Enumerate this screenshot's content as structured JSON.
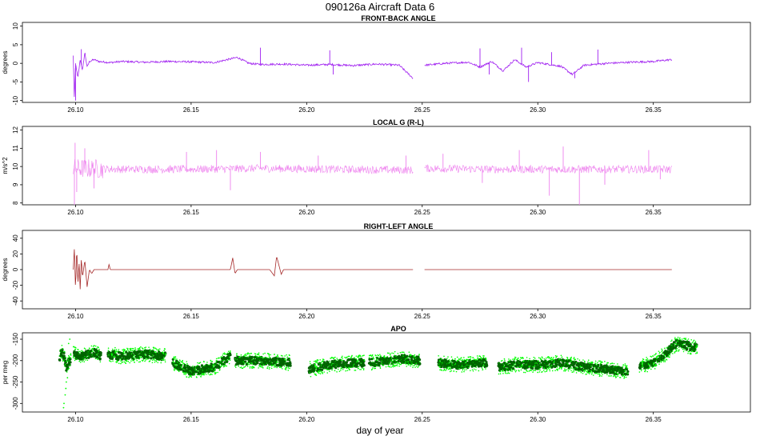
{
  "figure": {
    "title": "090126a   Aircraft Data 6",
    "xlabel": "day of year"
  },
  "chart_data": [
    {
      "type": "line",
      "title": "FRONT-BACK ANGLE",
      "ylabel": "degrees",
      "xlim": [
        26.077,
        26.392
      ],
      "ylim": [
        -10.5,
        11
      ],
      "xticks": [
        26.1,
        26.15,
        26.2,
        26.25,
        26.3,
        26.35
      ],
      "xtick_labels": [
        "26.10",
        "26.15",
        "26.20",
        "26.25",
        "26.30",
        "26.35"
      ],
      "yticks": [
        -10,
        -5,
        0,
        5,
        10
      ],
      "ytick_labels": [
        "-10",
        "-5",
        "0",
        "5",
        "10"
      ],
      "color": "#a020f0",
      "series": [
        {
          "x": [
            26.099,
            26.0995,
            26.1,
            26.101,
            26.102,
            26.103,
            26.104,
            26.105,
            26.106,
            26.108,
            26.11,
            26.115,
            26.12,
            26.13,
            26.14,
            26.15,
            26.16,
            26.17,
            26.175,
            26.18,
            26.19,
            26.2,
            26.21,
            26.22,
            26.23,
            26.24,
            26.246
          ],
          "y": [
            2,
            -10,
            0,
            -4,
            1,
            -2,
            3,
            -1,
            0.5,
            1,
            0.5,
            0.2,
            0.5,
            0.3,
            0.5,
            0.4,
            0.2,
            1.6,
            0,
            -0.3,
            -0.2,
            -0.5,
            -0.3,
            -0.6,
            -0.2,
            -0.5,
            -4
          ]
        },
        {
          "x": [
            26.251,
            26.26,
            26.27,
            26.275,
            26.28,
            26.285,
            26.29,
            26.295,
            26.3,
            26.31,
            26.315,
            26.32,
            26.33,
            26.34,
            26.35,
            26.358
          ],
          "y": [
            -0.5,
            0,
            0.3,
            -1,
            0.5,
            -2,
            1,
            -1,
            0.2,
            -0.8,
            -3,
            -0.5,
            0,
            0.3,
            0.5,
            1
          ]
        }
      ],
      "spikes": [
        {
          "x": 26.1,
          "y": -10
        },
        {
          "x": 26.1025,
          "y": 3.8
        },
        {
          "x": 26.18,
          "y": 4.2
        },
        {
          "x": 26.21,
          "y": 3.5
        },
        {
          "x": 26.2115,
          "y": -3
        },
        {
          "x": 26.275,
          "y": 4
        },
        {
          "x": 26.279,
          "y": -3
        },
        {
          "x": 26.293,
          "y": 4.2
        },
        {
          "x": 26.296,
          "y": -5
        },
        {
          "x": 26.306,
          "y": 3
        },
        {
          "x": 26.316,
          "y": -4
        },
        {
          "x": 26.326,
          "y": 3.7
        }
      ]
    },
    {
      "type": "line",
      "title": "LOCAL G (R-L)",
      "ylabel": "m/s^2",
      "xlim": [
        26.077,
        26.392
      ],
      "ylim": [
        7.9,
        12.2
      ],
      "xticks": [
        26.1,
        26.15,
        26.2,
        26.25,
        26.3,
        26.35
      ],
      "xtick_labels": [
        "26.10",
        "26.15",
        "26.20",
        "26.25",
        "26.30",
        "26.35"
      ],
      "yticks": [
        8,
        9,
        10,
        11,
        12
      ],
      "ytick_labels": [
        "8",
        "9",
        "10",
        "11",
        "12"
      ],
      "color": "#ee82ee",
      "series": [
        {
          "x": [
            26.099,
            26.12,
            26.15,
            26.18,
            26.21,
            26.246
          ],
          "y": [
            9.9,
            9.85,
            9.85,
            9.9,
            9.85,
            9.8
          ]
        },
        {
          "x": [
            26.251,
            26.28,
            26.31,
            26.34,
            26.358
          ],
          "y": [
            9.9,
            9.85,
            9.85,
            9.85,
            9.85
          ]
        }
      ],
      "spikes": [
        {
          "x": 26.0995,
          "y": 7.9
        },
        {
          "x": 26.0998,
          "y": 11.3
        },
        {
          "x": 26.1005,
          "y": 8.6
        },
        {
          "x": 26.104,
          "y": 11.0
        },
        {
          "x": 26.108,
          "y": 8.8
        },
        {
          "x": 26.148,
          "y": 10.8
        },
        {
          "x": 26.161,
          "y": 10.9
        },
        {
          "x": 26.167,
          "y": 8.7
        },
        {
          "x": 26.18,
          "y": 10.8
        },
        {
          "x": 26.205,
          "y": 10.6
        },
        {
          "x": 26.243,
          "y": 10.6
        },
        {
          "x": 26.259,
          "y": 10.7
        },
        {
          "x": 26.276,
          "y": 9.1
        },
        {
          "x": 26.292,
          "y": 10.9
        },
        {
          "x": 26.305,
          "y": 8.4
        },
        {
          "x": 26.311,
          "y": 11.1
        },
        {
          "x": 26.318,
          "y": 7.9
        },
        {
          "x": 26.329,
          "y": 9.0
        },
        {
          "x": 26.348,
          "y": 10.9
        },
        {
          "x": 26.353,
          "y": 9.3
        }
      ]
    },
    {
      "type": "line",
      "title": "RIGHT-LEFT ANGLE",
      "ylabel": "degrees",
      "xlim": [
        26.077,
        26.392
      ],
      "ylim": [
        -50,
        50
      ],
      "xticks": [
        26.1,
        26.15,
        26.2,
        26.25,
        26.3,
        26.35
      ],
      "xtick_labels": [
        "26.10",
        "26.15",
        "26.20",
        "26.25",
        "26.30",
        "26.35"
      ],
      "yticks": [
        -40,
        -20,
        0,
        20,
        40
      ],
      "ytick_labels": [
        "-40",
        "-20",
        "0",
        "20",
        "40"
      ],
      "color": "#a52a2a",
      "series": [
        {
          "x": [
            26.099,
            26.0995,
            26.1,
            26.1005,
            26.101,
            26.1015,
            26.102,
            26.1025,
            26.103,
            26.104,
            26.105,
            26.106,
            26.107,
            26.108,
            26.11,
            26.114,
            26.1145,
            26.115,
            26.12,
            26.16,
            26.167,
            26.168,
            26.169,
            26.17,
            26.18,
            26.184,
            26.186,
            26.187,
            26.189,
            26.19,
            26.2,
            26.246
          ],
          "y": [
            0,
            28,
            -28,
            30,
            -20,
            10,
            -25,
            15,
            -10,
            12,
            -22,
            0,
            -5,
            0,
            0,
            0,
            7,
            0,
            0,
            0,
            0,
            15,
            -5,
            0,
            0,
            0,
            -8,
            17,
            -6,
            0,
            0,
            0
          ]
        },
        {
          "x": [
            26.251,
            26.3,
            26.358
          ],
          "y": [
            0,
            0,
            0
          ]
        }
      ]
    },
    {
      "type": "scatter",
      "title": "APO",
      "ylabel": "per meg",
      "xlim": [
        26.077,
        26.392
      ],
      "ylim": [
        -320,
        -135
      ],
      "xticks": [
        26.1,
        26.15,
        26.2,
        26.25,
        26.3,
        26.35
      ],
      "xtick_labels": [
        "26.10",
        "26.15",
        "26.20",
        "26.25",
        "26.30",
        "26.35"
      ],
      "yticks": [
        -300,
        -250,
        -200,
        -150
      ],
      "ytick_labels": [
        "-300",
        "-250",
        "-200",
        "-150"
      ],
      "colors": {
        "light": "#00ff00",
        "dark": "#006400"
      },
      "segments": [
        {
          "x": [
            26.093,
            26.094,
            26.095,
            26.096,
            26.097,
            26.098
          ],
          "y": [
            -200,
            -175,
            -190,
            -215,
            -205,
            -200
          ]
        },
        {
          "x": [
            26.099,
            26.103,
            26.108,
            26.111
          ],
          "y": [
            -185,
            -190,
            -180,
            -190
          ]
        },
        {
          "x": [
            26.114,
            26.12,
            26.13,
            26.139
          ],
          "y": [
            -185,
            -190,
            -185,
            -190
          ]
        },
        {
          "x": [
            26.142,
            26.15,
            26.16,
            26.167
          ],
          "y": [
            -205,
            -225,
            -215,
            -190
          ]
        },
        {
          "x": [
            26.169,
            26.18,
            26.193
          ],
          "y": [
            -200,
            -200,
            -205
          ]
        },
        {
          "x": [
            26.201,
            26.21,
            26.22,
            26.225
          ],
          "y": [
            -220,
            -210,
            -205,
            -205
          ]
        },
        {
          "x": [
            26.227,
            26.235,
            26.24,
            26.249
          ],
          "y": [
            -205,
            -200,
            -195,
            -200
          ]
        },
        {
          "x": [
            26.257,
            26.265,
            26.278
          ],
          "y": [
            -205,
            -210,
            -205
          ]
        },
        {
          "x": [
            26.283,
            26.29,
            26.3,
            26.31,
            26.32,
            26.33,
            26.339
          ],
          "y": [
            -215,
            -210,
            -210,
            -205,
            -215,
            -220,
            -225
          ]
        },
        {
          "x": [
            26.344,
            26.35,
            26.355,
            26.36,
            26.369
          ],
          "y": [
            -215,
            -205,
            -185,
            -160,
            -170
          ]
        }
      ],
      "outliers": [
        {
          "x": 26.0948,
          "y": -310
        },
        {
          "x": 26.095,
          "y": -300
        },
        {
          "x": 26.0955,
          "y": -280
        },
        {
          "x": 26.0958,
          "y": -265
        },
        {
          "x": 26.096,
          "y": -250
        },
        {
          "x": 26.0965,
          "y": -240
        },
        {
          "x": 26.097,
          "y": -160
        },
        {
          "x": 26.0975,
          "y": -150
        }
      ]
    }
  ]
}
